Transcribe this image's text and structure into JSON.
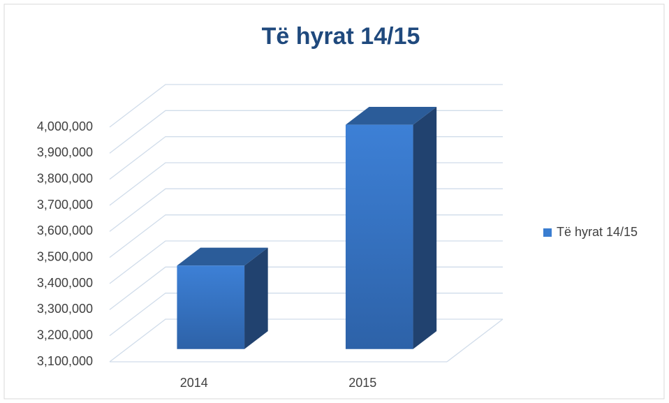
{
  "chart_data": {
    "type": "bar3d",
    "title": "Të hyrat 14/15",
    "categories": [
      "2014",
      "2015"
    ],
    "series": [
      {
        "name": "Të hyrat 14/15",
        "color": "#3a7dd0",
        "values": [
          3420000,
          3960000
        ]
      }
    ],
    "ylim": [
      3100000,
      4000000
    ],
    "yticks": [
      {
        "value": 3100000,
        "label": "3,100,000"
      },
      {
        "value": 3200000,
        "label": "3,200,000"
      },
      {
        "value": 3300000,
        "label": "3,300,000"
      },
      {
        "value": 3400000,
        "label": "3,400,000"
      },
      {
        "value": 3500000,
        "label": "3,500,000"
      },
      {
        "value": 3600000,
        "label": "3,600,000"
      },
      {
        "value": 3700000,
        "label": "3,700,000"
      },
      {
        "value": 3800000,
        "label": "3,800,000"
      },
      {
        "value": 3900000,
        "label": "3,900,000"
      },
      {
        "value": 4000000,
        "label": "4,000,000"
      }
    ],
    "grid": true,
    "legend": "right"
  }
}
